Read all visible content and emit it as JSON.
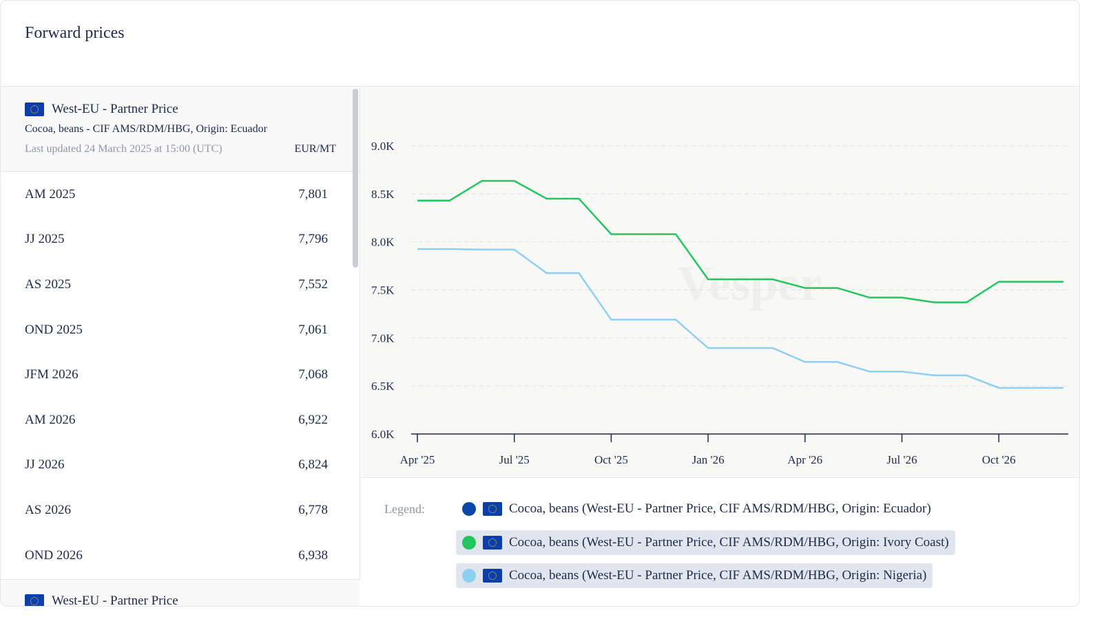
{
  "title": "Forward prices",
  "panel": {
    "source": "West-EU - Partner Price",
    "product": "Cocoa, beans - CIF AMS/RDM/HBG, Origin: Ecuador",
    "updated": "Last updated 24 March 2025 at 15:00 (UTC)",
    "unit": "EUR/MT",
    "rows": [
      {
        "period": "AM 2025",
        "value": "7,801"
      },
      {
        "period": "JJ 2025",
        "value": "7,796"
      },
      {
        "period": "AS 2025",
        "value": "7,552"
      },
      {
        "period": "OND 2025",
        "value": "7,061"
      },
      {
        "period": "JFM 2026",
        "value": "7,068"
      },
      {
        "period": "AM 2026",
        "value": "6,922"
      },
      {
        "period": "JJ 2026",
        "value": "6,824"
      },
      {
        "period": "AS 2026",
        "value": "6,778"
      },
      {
        "period": "OND 2026",
        "value": "6,938"
      }
    ],
    "next_source": "West-EU - Partner Price"
  },
  "watermark": "Vesper",
  "legend": {
    "label": "Legend:",
    "items": [
      {
        "label": "Cocoa, beans (West-EU - Partner Price, CIF AMS/RDM/HBG, Origin: Ecuador)",
        "color": "#0b47a8",
        "active": false
      },
      {
        "label": "Cocoa, beans (West-EU - Partner Price, CIF AMS/RDM/HBG, Origin: Ivory Coast)",
        "color": "#22c55e",
        "active": true
      },
      {
        "label": "Cocoa, beans (West-EU - Partner Price, CIF AMS/RDM/HBG, Origin: Nigeria)",
        "color": "#8ecff2",
        "active": true
      }
    ]
  },
  "chart_data": {
    "type": "line",
    "ylim": [
      6000,
      9000
    ],
    "yticks": [
      6000,
      6500,
      7000,
      7500,
      8000,
      8500,
      9000
    ],
    "ytick_labels": [
      "6.0K",
      "6.5K",
      "7.0K",
      "7.5K",
      "8.0K",
      "8.5K",
      "9.0K"
    ],
    "x": [
      "Apr '25",
      "May '25",
      "Jun '25",
      "Jul '25",
      "Aug '25",
      "Sep '25",
      "Oct '25",
      "Nov '25",
      "Dec '25",
      "Jan '26",
      "Feb '26",
      "Mar '26",
      "Apr '26",
      "May '26",
      "Jun '26",
      "Jul '26",
      "Aug '26",
      "Sep '26",
      "Oct '26",
      "Nov '26",
      "Dec '26"
    ],
    "xtick_labels": [
      "Apr '25",
      "Jul '25",
      "Oct '25",
      "Jan '26",
      "Apr '26",
      "Jul '26",
      "Oct '26"
    ],
    "grid": true,
    "series": [
      {
        "name": "Ivory Coast",
        "color": "#22c55e",
        "values": [
          8430,
          8430,
          8635,
          8635,
          8450,
          8450,
          8080,
          8080,
          8080,
          7610,
          7610,
          7610,
          7520,
          7520,
          7420,
          7420,
          7370,
          7370,
          7585,
          7585,
          7585
        ]
      },
      {
        "name": "Nigeria",
        "color": "#8ecff2",
        "values": [
          7925,
          7925,
          7920,
          7920,
          7675,
          7675,
          7190,
          7190,
          7190,
          6895,
          6895,
          6895,
          6750,
          6750,
          6650,
          6650,
          6610,
          6610,
          6480,
          6480,
          6480
        ]
      }
    ]
  }
}
